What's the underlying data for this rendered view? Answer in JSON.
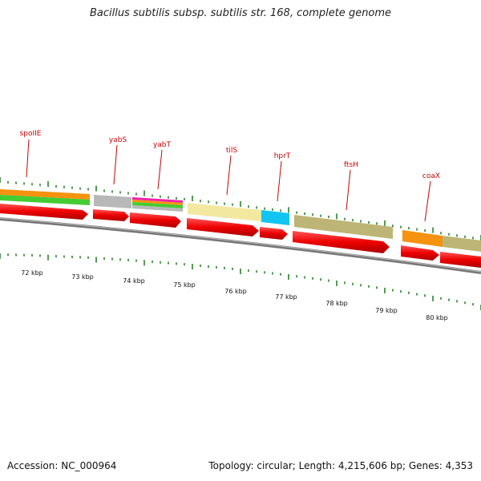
{
  "title": "Bacillus subtilis subsp. subtilis str. 168, complete genome",
  "footer": {
    "accession": "Accession: NC_000964",
    "summary": "Topology: circular; Length: 4,215,606 bp; Genes: 4,353"
  },
  "genes": [
    "spoIIE",
    "yabS",
    "yabT",
    "tilS",
    "hprT",
    "ftsH",
    "coaX"
  ],
  "kbp_labels": [
    "72 kbp",
    "73 kbp",
    "74 kbp",
    "75 kbp",
    "76 kbp",
    "77 kbp",
    "78 kbp",
    "79 kbp",
    "80 kbp"
  ],
  "colors": {
    "gene_arrow": "#ee0000",
    "gene_label": "#cc0000",
    "tick": "#1a7a1a",
    "backbone": "#777777",
    "orange": "#f5920f",
    "green": "#44cc33",
    "grey": "#b8b8b8",
    "khaki_light": "#f2e8a0",
    "khaki": "#bdb575",
    "cyan": "#11c4f2",
    "magenta": "#ee22aa"
  }
}
